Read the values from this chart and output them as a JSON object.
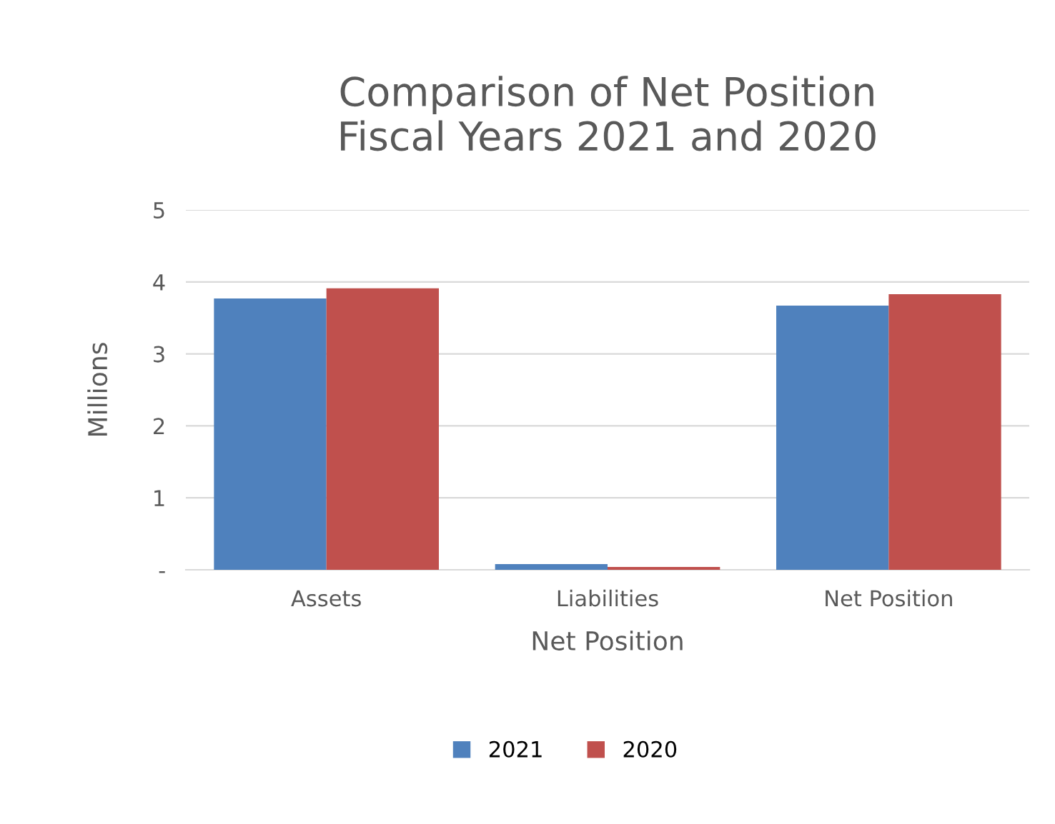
{
  "chart_data": {
    "type": "bar",
    "title": "Comparison of Net Position\nFiscal Years 2021 and 2020",
    "xlabel": "Net Position",
    "ylabel": "Millions",
    "categories": [
      "Assets",
      "Liabilities",
      "Net Position"
    ],
    "series": [
      {
        "name": "2021",
        "color": "#4f81bd",
        "values": [
          3.77,
          0.08,
          3.67
        ]
      },
      {
        "name": "2020",
        "color": "#c0504d",
        "values": [
          3.91,
          0.04,
          3.83
        ]
      }
    ],
    "ylim": [
      0,
      5
    ],
    "yticks": [
      {
        "value": 0,
        "label": "-"
      },
      1,
      2,
      3,
      4,
      5
    ],
    "grid": "y",
    "legend": "bottom"
  }
}
